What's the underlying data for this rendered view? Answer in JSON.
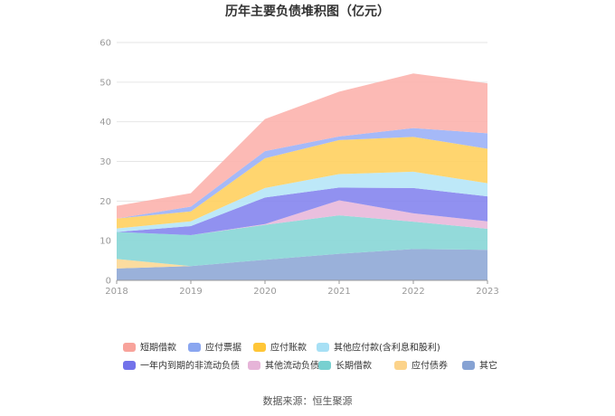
{
  "chart_data": {
    "type": "area",
    "stacked": true,
    "title": "历年主要负债堆积图（亿元）",
    "x": [
      "2018",
      "2019",
      "2020",
      "2021",
      "2022",
      "2023"
    ],
    "y_ticks": [
      "0",
      "10",
      "20",
      "30",
      "40",
      "50",
      "60"
    ],
    "ylim": [
      0,
      60
    ],
    "grid": true,
    "legend_position": "bottom",
    "series": [
      {
        "name": "其它",
        "color": "#8fa9d6",
        "values": [
          3.0,
          3.6,
          5.2,
          6.7,
          7.9,
          7.7
        ]
      },
      {
        "name": "应付债券",
        "color": "#fcd895",
        "values": [
          2.4,
          0.0,
          0.0,
          0.0,
          0.0,
          0.0
        ]
      },
      {
        "name": "长期借款",
        "color": "#87d6d6",
        "values": [
          6.8,
          7.8,
          8.8,
          9.7,
          6.9,
          5.3
        ]
      },
      {
        "name": "其他流动负债",
        "color": "#e8b8da",
        "values": [
          0.0,
          0.0,
          0.2,
          3.8,
          2.1,
          1.9
        ]
      },
      {
        "name": "一年内到期的非流动负债",
        "color": "#8585ee",
        "values": [
          0.0,
          2.3,
          6.7,
          3.2,
          6.4,
          6.3
        ]
      },
      {
        "name": "其他应付款(含利息和股利)",
        "color": "#b6e6f7",
        "values": [
          0.9,
          1.2,
          2.4,
          3.4,
          4.1,
          3.3
        ]
      },
      {
        "name": "应付账款",
        "color": "#ffd05f",
        "values": [
          2.5,
          2.5,
          7.5,
          8.6,
          8.8,
          8.7
        ]
      },
      {
        "name": "应付票据",
        "color": "#9bb1f7",
        "values": [
          0.0,
          1.2,
          1.8,
          0.9,
          2.2,
          3.9
        ]
      },
      {
        "name": "短期借款",
        "color": "#fcb3ad",
        "values": [
          3.2,
          3.4,
          8.1,
          11.3,
          13.8,
          12.6
        ]
      }
    ],
    "legend": [
      {
        "name": "短期借款",
        "color": "#f8a39b"
      },
      {
        "name": "应付票据",
        "color": "#8aa6f0"
      },
      {
        "name": "应付账款",
        "color": "#ffc637"
      },
      {
        "name": "其他应付款(含利息和股利)",
        "color": "#a7e0f5"
      },
      {
        "name": "一年内到期的非流动负债",
        "color": "#7272ea"
      },
      {
        "name": "其他流动负债",
        "color": "#e6b4d8"
      },
      {
        "name": "长期借款",
        "color": "#78d0d0"
      },
      {
        "name": "应付债券",
        "color": "#fcd38a"
      },
      {
        "name": "其它",
        "color": "#86a2d3"
      }
    ]
  },
  "source_text": "数据来源：恒生聚源"
}
